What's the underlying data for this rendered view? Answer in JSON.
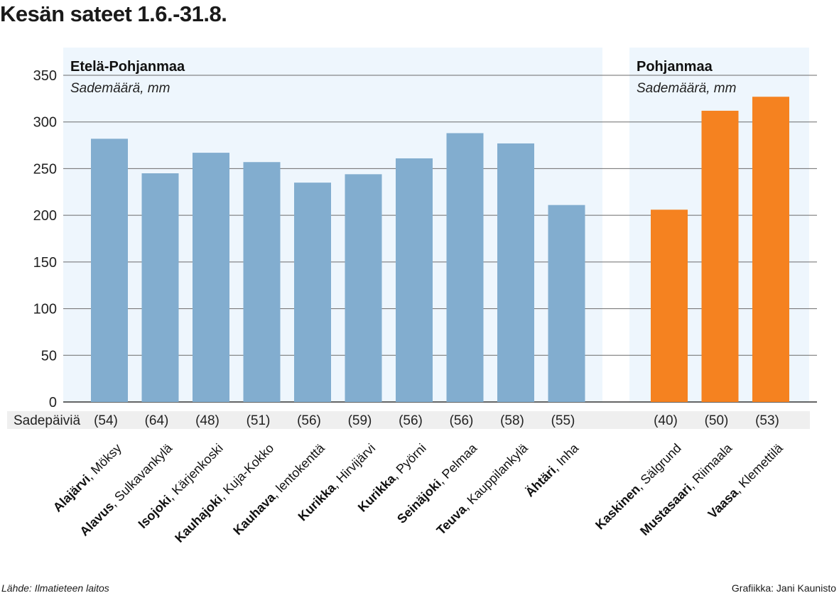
{
  "title": "Kesän sateet 1.6.-31.8.",
  "source": "Lähde: Ilmatieteen laitos",
  "credit": "Grafiikka: Jani Kaunisto",
  "colors": {
    "panel_bg": "#eef6fd",
    "bar_south": "#82adcf",
    "bar_north": "#f58220",
    "days_strip": "#efefef",
    "grid": "#6b6b6b"
  },
  "chart_data": {
    "type": "bar",
    "title": "Kesän sateet 1.6.-31.8.",
    "ylabel": "Sademäärä, mm",
    "ylim": [
      0,
      350
    ],
    "yticks": [
      0,
      50,
      100,
      150,
      200,
      250,
      300,
      350
    ],
    "days_label": "Sadepäiviä",
    "groups": [
      {
        "name": "Etelä-Pohjanmaa",
        "unit_label": "Sademäärä, mm",
        "stations": [
          {
            "bold": "Alajärvi",
            "rest": ", Möksy",
            "value": 282,
            "days": "(54)"
          },
          {
            "bold": "Alavus",
            "rest": ", Sulkavankylä",
            "value": 245,
            "days": "(64)"
          },
          {
            "bold": "Isojoki",
            "rest": ", Kärjenkoski",
            "value": 267,
            "days": "(48)"
          },
          {
            "bold": "Kauhajoki",
            "rest": ", Kuja-Kokko",
            "value": 257,
            "days": "(51)"
          },
          {
            "bold": "Kauhava",
            "rest": ", lentokenttä",
            "value": 235,
            "days": "(56)"
          },
          {
            "bold": "Kurikka",
            "rest": ", Hirvijärvi",
            "value": 244,
            "days": "(59)"
          },
          {
            "bold": "Kurikka",
            "rest": ", Pyörni",
            "value": 261,
            "days": "(56)"
          },
          {
            "bold": "Seinäjoki",
            "rest": ", Pelmaa",
            "value": 288,
            "days": "(56)"
          },
          {
            "bold": "Teuva",
            "rest": ", Kauppilankylä",
            "value": 277,
            "days": "(58)"
          },
          {
            "bold": "Ähtäri",
            "rest": ", Inha",
            "value": 211,
            "days": "(55)"
          }
        ]
      },
      {
        "name": "Pohjanmaa",
        "unit_label": "Sademäärä, mm",
        "stations": [
          {
            "bold": "Kaskinen",
            "rest": ", Sälgrund",
            "value": 206,
            "days": "(40)"
          },
          {
            "bold": "Mustasaari",
            "rest": ", Riimaala",
            "value": 312,
            "days": "(50)"
          },
          {
            "bold": "Vaasa",
            "rest": ", Klemettilä",
            "value": 327,
            "days": "(53)"
          }
        ]
      }
    ]
  }
}
